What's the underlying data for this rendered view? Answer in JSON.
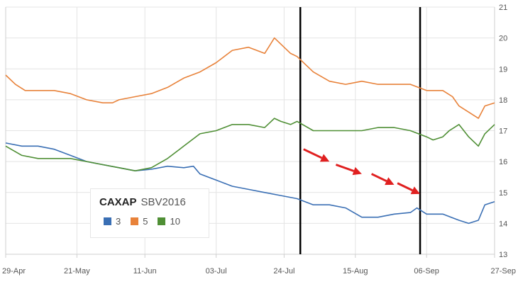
{
  "chart_data": {
    "type": "line",
    "title": "",
    "xlabel": "",
    "ylabel": "",
    "ylim": [
      13,
      21
    ],
    "yticks": [
      13,
      14,
      15,
      16,
      17,
      18,
      19,
      20,
      21
    ],
    "y_axis_side": "right",
    "grid": true,
    "x_start": "29-Apr",
    "x_end": "27-Sep",
    "x_index_range": [
      0,
      151
    ],
    "xticks": [
      {
        "label": "29-Apr",
        "i": 0
      },
      {
        "label": "21-May",
        "i": 22
      },
      {
        "label": "11-Jun",
        "i": 43
      },
      {
        "label": "03-Jul",
        "i": 65
      },
      {
        "label": "24-Jul",
        "i": 86
      },
      {
        "label": "15-Aug",
        "i": 108
      },
      {
        "label": "06-Sep",
        "i": 130
      },
      {
        "label": "27-Sep",
        "i": 151
      }
    ],
    "legend": {
      "title_main": "CAXAP",
      "title_sub": "SBV2016",
      "position": "bottom-left"
    },
    "series": [
      {
        "name": "3",
        "color": "#3a6fb4",
        "x": [
          0,
          5,
          10,
          15,
          20,
          25,
          30,
          35,
          40,
          45,
          50,
          55,
          58,
          60,
          65,
          70,
          75,
          80,
          85,
          90,
          95,
          100,
          105,
          110,
          115,
          120,
          125,
          127,
          130,
          132,
          135,
          140,
          143,
          146,
          148,
          151
        ],
        "y": [
          16.6,
          16.5,
          16.5,
          16.4,
          16.2,
          16.0,
          15.9,
          15.8,
          15.7,
          15.75,
          15.85,
          15.8,
          15.85,
          15.6,
          15.4,
          15.2,
          15.1,
          15.0,
          14.9,
          14.8,
          14.6,
          14.6,
          14.5,
          14.2,
          14.2,
          14.3,
          14.35,
          14.5,
          14.3,
          14.3,
          14.3,
          14.1,
          14.0,
          14.1,
          14.6,
          14.7
        ]
      },
      {
        "name": "5",
        "color": "#e8823a",
        "x": [
          0,
          3,
          6,
          10,
          15,
          20,
          25,
          30,
          33,
          35,
          40,
          45,
          50,
          55,
          60,
          65,
          70,
          75,
          80,
          83,
          85,
          88,
          90,
          95,
          100,
          105,
          110,
          115,
          120,
          125,
          130,
          135,
          138,
          140,
          143,
          146,
          148,
          151
        ],
        "y": [
          18.8,
          18.5,
          18.3,
          18.3,
          18.3,
          18.2,
          18.0,
          17.9,
          17.9,
          18.0,
          18.1,
          18.2,
          18.4,
          18.7,
          18.9,
          19.2,
          19.6,
          19.7,
          19.5,
          20.0,
          19.8,
          19.5,
          19.4,
          18.9,
          18.6,
          18.5,
          18.6,
          18.5,
          18.5,
          18.5,
          18.3,
          18.3,
          18.1,
          17.8,
          17.6,
          17.4,
          17.8,
          17.9
        ]
      },
      {
        "name": "10",
        "color": "#4f8f35",
        "x": [
          0,
          5,
          10,
          15,
          20,
          25,
          30,
          35,
          40,
          45,
          50,
          55,
          60,
          65,
          70,
          75,
          80,
          83,
          85,
          88,
          90,
          95,
          100,
          105,
          110,
          115,
          120,
          125,
          130,
          132,
          135,
          137,
          140,
          143,
          146,
          148,
          151
        ],
        "y": [
          16.5,
          16.2,
          16.1,
          16.1,
          16.1,
          16.0,
          15.9,
          15.8,
          15.7,
          15.8,
          16.1,
          16.5,
          16.9,
          17.0,
          17.2,
          17.2,
          17.1,
          17.4,
          17.3,
          17.2,
          17.3,
          17.0,
          17.0,
          17.0,
          17.0,
          17.1,
          17.1,
          17.0,
          16.8,
          16.7,
          16.8,
          17.0,
          17.2,
          16.8,
          16.5,
          16.9,
          17.2
        ]
      }
    ],
    "vertical_lines": [
      {
        "i": 91,
        "color": "#000000"
      },
      {
        "i": 128,
        "color": "#000000"
      }
    ],
    "arrows": [
      {
        "from": [
          92,
          16.4
        ],
        "to": [
          100,
          16.0
        ]
      },
      {
        "from": [
          102,
          15.9
        ],
        "to": [
          110,
          15.6
        ]
      },
      {
        "from": [
          113,
          15.6
        ],
        "to": [
          120,
          15.25
        ]
      },
      {
        "from": [
          121,
          15.3
        ],
        "to": [
          128,
          14.95
        ]
      }
    ],
    "arrow_color": "#e02020"
  }
}
